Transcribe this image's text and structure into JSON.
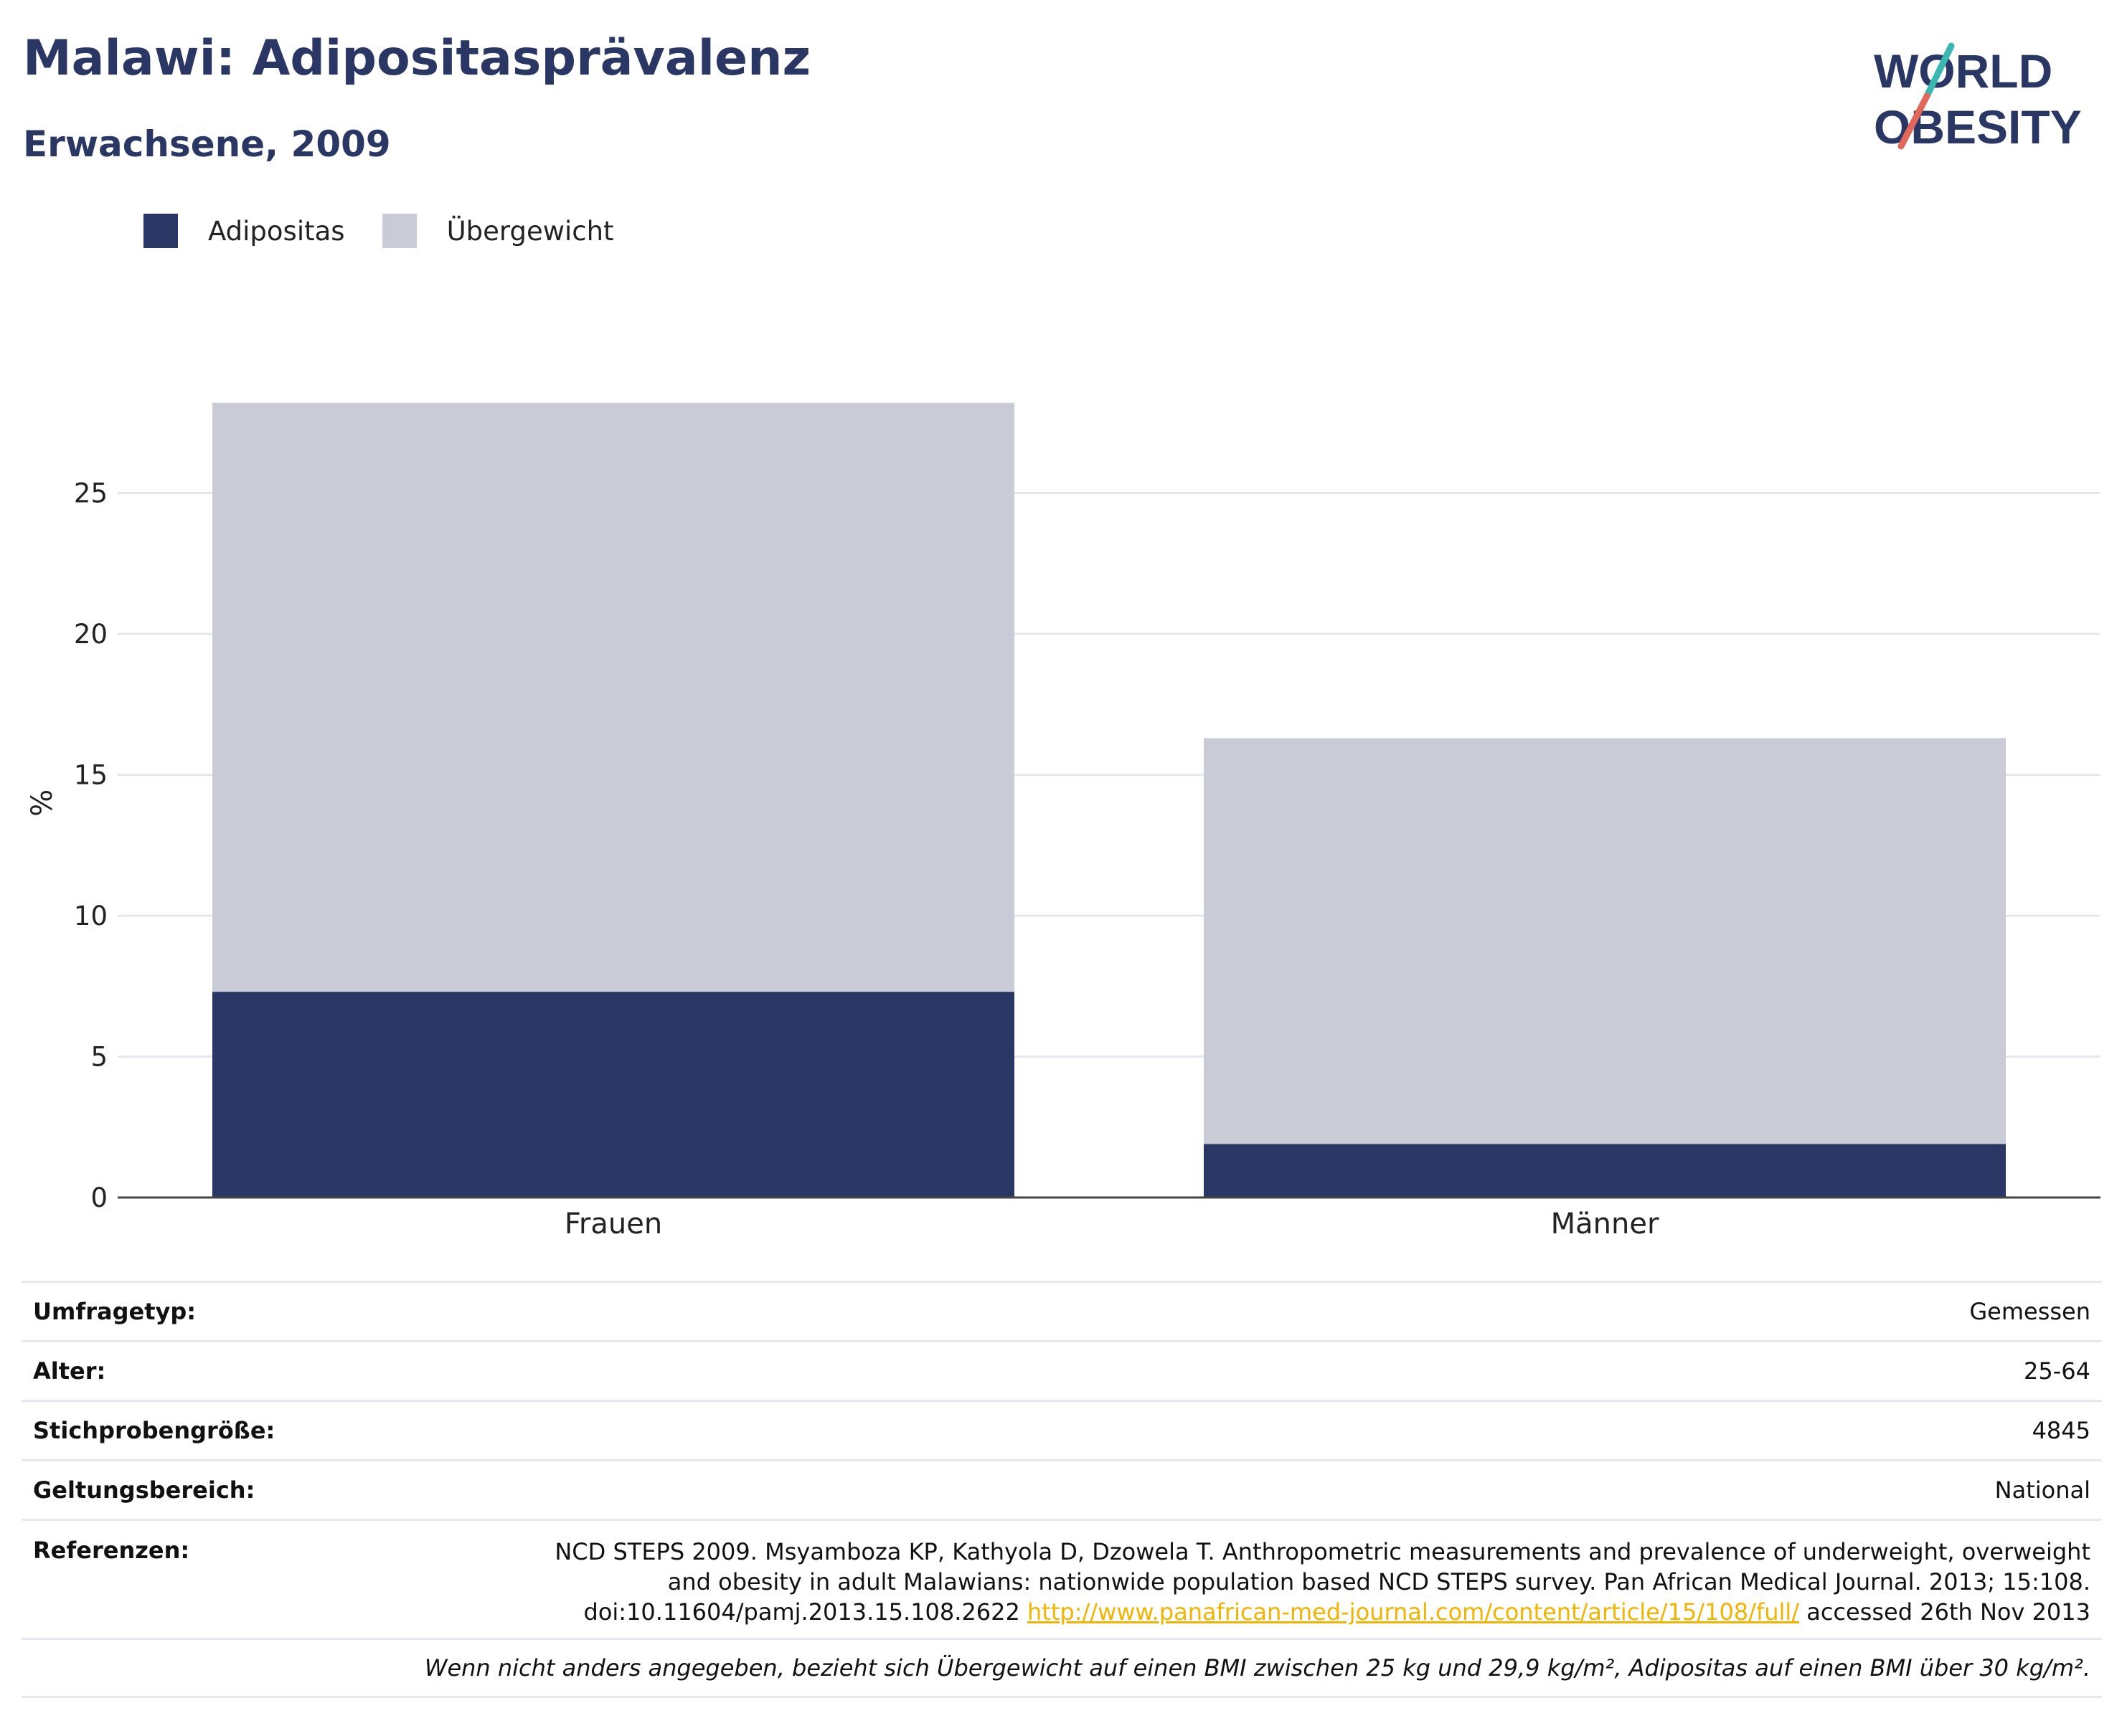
{
  "header": {
    "title": "Malawi: Adipositasprävalenz",
    "subtitle": "Erwachsene, 2009"
  },
  "logo": {
    "line1": "WORLD",
    "line2": "OBESITY"
  },
  "legend": [
    {
      "label": "Adipositas",
      "color": "#2a3764"
    },
    {
      "label": "Übergewicht",
      "color": "#c9ccd7"
    }
  ],
  "chart_data": {
    "type": "bar",
    "stacked": true,
    "categories": [
      "Frauen",
      "Männer"
    ],
    "series": [
      {
        "name": "Adipositas",
        "color": "#2a3764",
        "values": [
          7.3,
          1.9
        ]
      },
      {
        "name": "Übergewicht",
        "color": "#c9ccd7",
        "values": [
          20.9,
          14.4
        ]
      }
    ],
    "ylabel": "%",
    "ylim": [
      0,
      30
    ],
    "yticks": [
      0,
      5,
      10,
      15,
      20,
      25
    ],
    "grid": true,
    "legend_position": "top-left"
  },
  "info": {
    "survey_label": "Umfragetyp:",
    "survey_value": "Gemessen",
    "age_label": "Alter:",
    "age_value": "25-64",
    "sample_label": "Stichprobengröße:",
    "sample_value": "4845",
    "scope_label": "Geltungsbereich:",
    "scope_value": "National",
    "ref_label": "Referenzen:",
    "ref_line1": "NCD STEPS 2009. Msyamboza KP, Kathyola D, Dzowela T. Anthropometric measurements and prevalence of underweight, overweight",
    "ref_line2": "and obesity in adult Malawians: nationwide population based NCD STEPS survey. Pan African Medical Journal. 2013; 15:108.",
    "ref_line3_pre": "doi:10.11604/pamj.2013.15.108.2622 ",
    "ref_link": "http://www.panafrican-med-journal.com/content/article/15/108/full/",
    "ref_line3_post": " accessed 26th Nov 2013",
    "footnote": "Wenn nicht anders angegeben, bezieht sich Übergewicht auf einen BMI zwischen 25 kg und 29,9 kg/m², Adipositas auf einen BMI über 30 kg/m²."
  }
}
